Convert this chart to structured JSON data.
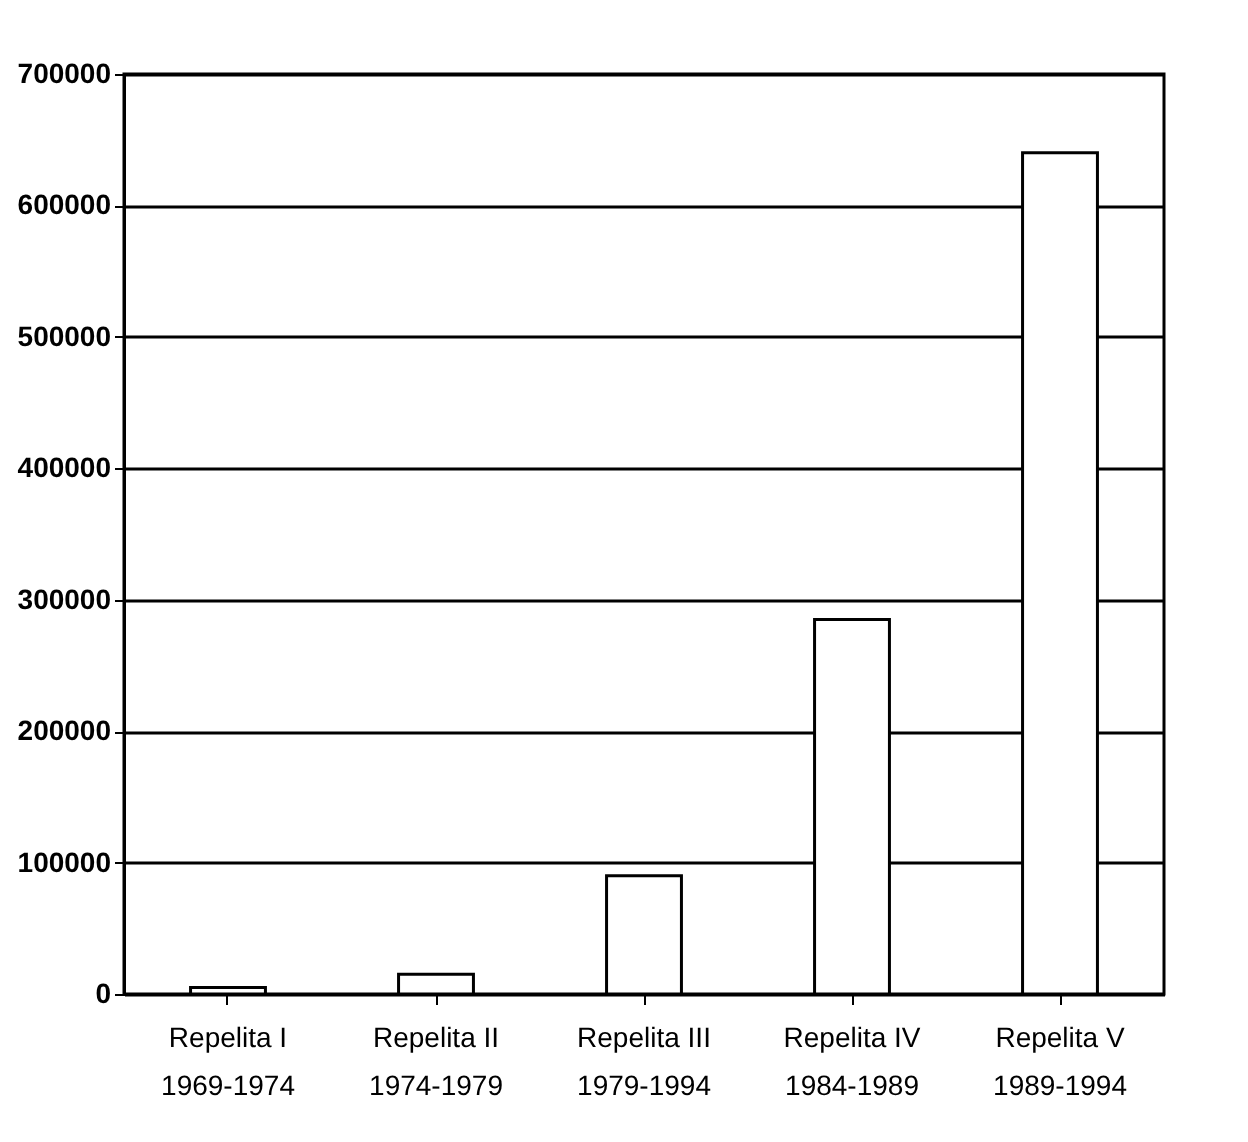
{
  "chart_data": {
    "type": "bar",
    "categories": [
      "Repelita I\n1969-1974",
      "Repelita II\n1974-1979",
      "Repelita III\n1979-1994",
      "Repelita IV\n1984-1989",
      "Repelita V\n1989-1994"
    ],
    "values": [
      5000,
      15000,
      90000,
      285000,
      640000
    ],
    "color": "#ffffff",
    "ylim": [
      0,
      700000
    ],
    "yticks": [
      0,
      100000,
      200000,
      300000,
      400000,
      500000,
      600000,
      700000
    ],
    "grid": "y"
  }
}
